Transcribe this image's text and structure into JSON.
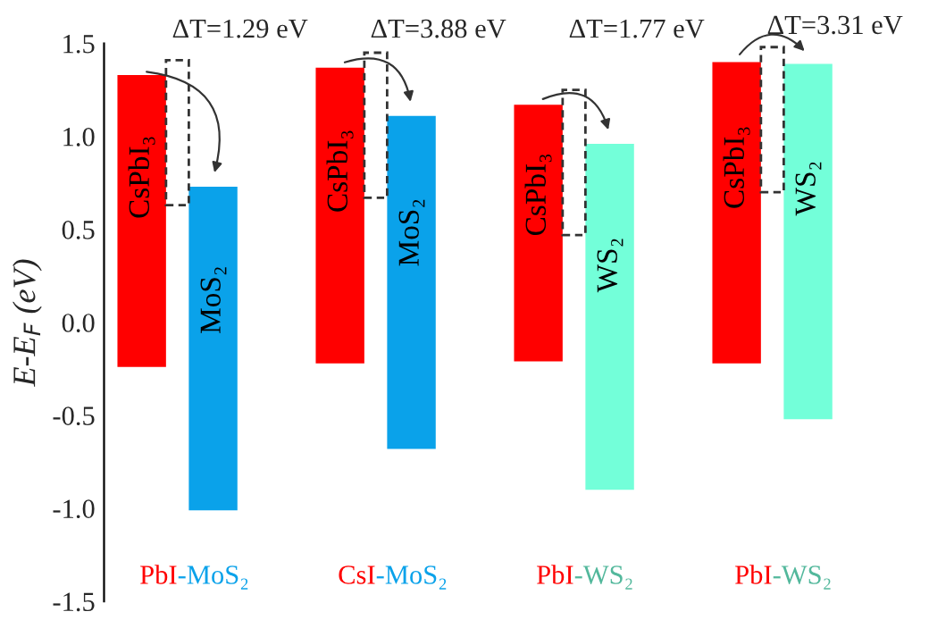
{
  "chart_data": {
    "type": "bar",
    "ylabel": "E-E$_{F}$ (eV)",
    "tick_labels": "y",
    "categories": [
      "PbI-MoS₂",
      "CsI-MoS₂",
      "PbI-WS₂",
      "PbI-WS₂"
    ],
    "series": [
      {
        "name": "CsPbI₃",
        "color": "#ff0000",
        "base": [
          -0.24,
          -0.22,
          -0.21,
          -0.22
        ],
        "values": [
          1.57,
          1.59,
          1.38,
          1.62
        ]
      },
      {
        "name": "MoS₂",
        "color": "#0aa2ea",
        "base": [
          -1.01,
          -0.68,
          null,
          null
        ],
        "values": [
          1.74,
          1.79,
          null,
          null
        ]
      },
      {
        "name": "WS₂",
        "color": "#73ffd9",
        "base": [
          null,
          null,
          -0.9,
          -0.52
        ],
        "values": [
          null,
          null,
          1.86,
          1.91
        ]
      }
    ],
    "annotations": [
      "ΔT=1.29 eV",
      "ΔT=3.88 eV",
      "ΔT=1.77 eV",
      "ΔT=3.31 eV"
    ],
    "ylim": [
      -1.5,
      1.5
    ],
    "yticks": [
      {
        "value": -1.5,
        "label": "-1.5"
      },
      {
        "value": -1.0,
        "label": "-1.0"
      },
      {
        "value": -0.5,
        "label": "-0.5"
      },
      {
        "value": 0.0,
        "label": "0.0"
      },
      {
        "value": 0.5,
        "label": "0.5"
      },
      {
        "value": 1.0,
        "label": "1.0"
      },
      {
        "value": 1.5,
        "label": "1.5"
      }
    ]
  }
}
